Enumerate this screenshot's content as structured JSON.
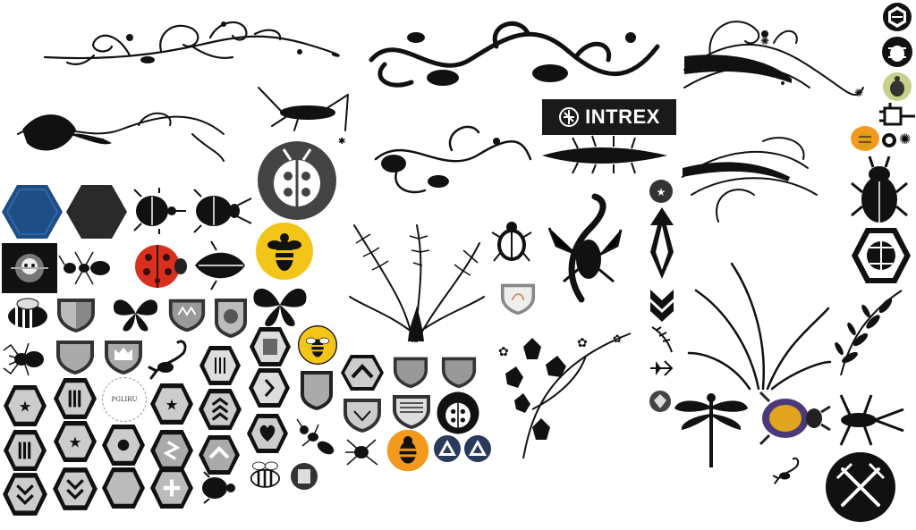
{
  "title": "",
  "banner": {
    "text": "INTREX"
  },
  "stamp": {
    "text": "PGLIRU"
  },
  "colors": {
    "black": "#111111",
    "blue_hex": "#1f4e86",
    "dark_hex": "#2a2a2a",
    "bee_yellow": "#f3c519",
    "bee_orange": "#f39a1e",
    "ladybug_red": "#d8301c",
    "shield_gray": "#9a9a9a",
    "shield_light": "#d9d9d9",
    "purple_beetle": "#4a3a7a",
    "olive_bug": "#c8d08a"
  },
  "icons": [
    "swirl-ornament-icon",
    "grasshopper-icon",
    "ladybug-badge-icon",
    "beetle-icon",
    "stag-beetle-icon",
    "bee-badge-icon",
    "ladybug-icon",
    "cicada-icon",
    "butterfly-icon",
    "ant-icon",
    "spider-icon",
    "scorpion-icon",
    "shield-badge-icon",
    "hexagon-badge-icon",
    "fern-icon",
    "holly-vine-icon",
    "dragonfly-icon",
    "scarab-icon",
    "crossed-swords-badge-icon",
    "vine-leaves-icon",
    "chevron-icon"
  ]
}
